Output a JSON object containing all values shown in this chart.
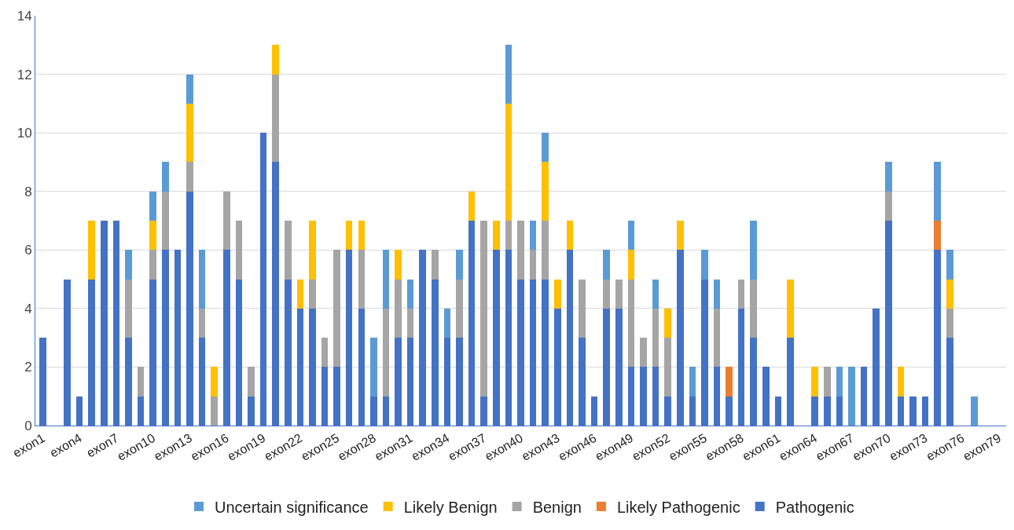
{
  "chart_data": {
    "type": "bar",
    "stacked": true,
    "categories": [
      "exon1",
      null,
      null,
      "exon4",
      null,
      null,
      "exon7",
      null,
      null,
      "exon10",
      null,
      null,
      "exon13",
      null,
      null,
      "exon16",
      null,
      null,
      "exon19",
      null,
      null,
      "exon22",
      null,
      null,
      "exon25",
      null,
      null,
      "exon28",
      null,
      null,
      "exon31",
      null,
      null,
      "exon34",
      null,
      null,
      "exon37",
      null,
      null,
      "exon40",
      null,
      null,
      "exon43",
      null,
      null,
      "exon46",
      null,
      null,
      "exon49",
      null,
      null,
      "exon52",
      null,
      null,
      "exon55",
      null,
      null,
      "exon58",
      null,
      null,
      "exon61",
      null,
      null,
      "exon64",
      null,
      null,
      "exon67",
      null,
      null,
      "exon70",
      null,
      null,
      "exon73",
      null,
      null,
      "exon76",
      null,
      null,
      "exon79"
    ],
    "series": [
      {
        "name": "Pathogenic",
        "color": "#4472c4",
        "values": [
          3,
          0,
          5,
          1,
          5,
          7,
          7,
          3,
          1,
          5,
          6,
          6,
          8,
          3,
          0,
          6,
          5,
          1,
          10,
          9,
          5,
          4,
          4,
          2,
          2,
          6,
          4,
          1,
          1,
          3,
          3,
          6,
          5,
          3,
          3,
          7,
          1,
          6,
          6,
          5,
          5,
          5,
          4,
          6,
          3,
          1,
          4,
          4,
          2,
          2,
          2,
          1,
          6,
          1,
          5,
          2,
          1,
          4,
          3,
          2,
          1,
          3,
          0,
          1,
          1,
          1,
          0,
          2,
          4,
          7,
          1,
          1,
          1,
          6,
          3,
          0,
          0,
          0,
          0
        ]
      },
      {
        "name": "Likely Pathogenic",
        "color": "#ed7d31",
        "values": [
          0,
          0,
          0,
          0,
          0,
          0,
          0,
          0,
          0,
          0,
          0,
          0,
          0,
          0,
          0,
          0,
          0,
          0,
          0,
          0,
          0,
          0,
          0,
          0,
          0,
          0,
          0,
          0,
          0,
          0,
          0,
          0,
          0,
          0,
          0,
          0,
          0,
          0,
          0,
          0,
          0,
          0,
          0,
          0,
          0,
          0,
          0,
          0,
          0,
          0,
          0,
          0,
          0,
          0,
          0,
          0,
          1,
          0,
          0,
          0,
          0,
          0,
          0,
          0,
          0,
          0,
          0,
          0,
          0,
          0,
          0,
          0,
          0,
          1,
          0,
          0,
          0,
          0,
          0
        ]
      },
      {
        "name": "Benign",
        "color": "#a5a5a5",
        "values": [
          0,
          0,
          0,
          0,
          0,
          0,
          0,
          2,
          1,
          1,
          2,
          0,
          1,
          1,
          1,
          2,
          2,
          1,
          0,
          3,
          2,
          0,
          1,
          1,
          4,
          0,
          2,
          0,
          3,
          2,
          1,
          0,
          1,
          0,
          2,
          0,
          6,
          0,
          1,
          2,
          1,
          2,
          0,
          0,
          2,
          0,
          1,
          1,
          3,
          1,
          2,
          2,
          0,
          0,
          0,
          2,
          0,
          1,
          2,
          0,
          0,
          0,
          0,
          0,
          1,
          0,
          0,
          0,
          0,
          1,
          0,
          0,
          0,
          0,
          1,
          0,
          0,
          0,
          0
        ]
      },
      {
        "name": "Likely Benign",
        "color": "#ffc000",
        "values": [
          0,
          0,
          0,
          0,
          2,
          0,
          0,
          0,
          0,
          1,
          0,
          0,
          2,
          0,
          1,
          0,
          0,
          0,
          0,
          1,
          0,
          1,
          2,
          0,
          0,
          1,
          1,
          0,
          0,
          1,
          0,
          0,
          0,
          0,
          0,
          1,
          0,
          1,
          4,
          0,
          0,
          2,
          1,
          1,
          0,
          0,
          0,
          0,
          1,
          0,
          0,
          1,
          1,
          0,
          0,
          0,
          0,
          0,
          0,
          0,
          0,
          2,
          0,
          1,
          0,
          0,
          0,
          0,
          0,
          0,
          1,
          0,
          0,
          0,
          1,
          0,
          0,
          0,
          0
        ]
      },
      {
        "name": "Uncertain significance",
        "color": "#5b9bd5",
        "values": [
          0,
          0,
          0,
          0,
          0,
          0,
          0,
          1,
          0,
          1,
          1,
          0,
          1,
          2,
          0,
          0,
          0,
          0,
          0,
          0,
          0,
          0,
          0,
          0,
          0,
          0,
          0,
          2,
          2,
          0,
          1,
          0,
          0,
          1,
          1,
          0,
          0,
          0,
          2,
          0,
          1,
          1,
          0,
          0,
          0,
          0,
          1,
          0,
          1,
          0,
          1,
          0,
          0,
          1,
          1,
          1,
          0,
          0,
          2,
          0,
          0,
          0,
          0,
          0,
          0,
          1,
          2,
          0,
          0,
          1,
          0,
          0,
          0,
          2,
          1,
          0,
          1,
          0,
          0
        ]
      }
    ],
    "ylim": [
      0,
      14
    ],
    "yticks": [
      0,
      2,
      4,
      6,
      8,
      10,
      12,
      14
    ],
    "grid": "y",
    "legend": "bottom"
  }
}
